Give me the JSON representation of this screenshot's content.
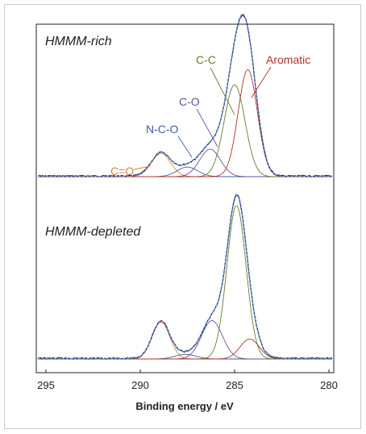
{
  "chart_data": {
    "type": "line",
    "xlabel": "Binding energy / eV",
    "xlim": [
      295,
      280
    ],
    "x_ticks": [
      "295",
      "290",
      "285",
      "280"
    ],
    "x_tick_values": [
      295,
      290,
      285,
      280
    ],
    "reversed_x": true,
    "grid": false,
    "panels": [
      {
        "label": "HMMM-rich",
        "peak_labels": [
          {
            "name": "C=O",
            "color": "#e2803d"
          },
          {
            "name": "N-C-O",
            "color": "#3f5fa0"
          },
          {
            "name": "C-O",
            "color": "#6a4fa0"
          },
          {
            "name": "C-C",
            "color": "#5f7f2f"
          },
          {
            "name": "Aromatic",
            "color": "#b3302b"
          }
        ],
        "components": [
          {
            "name": "C=O",
            "center": 288.9,
            "height": 0.17,
            "fwhm": 1.2,
            "color": "#e2803d"
          },
          {
            "name": "N-C-O",
            "center": 287.5,
            "height": 0.07,
            "fwhm": 1.3,
            "color": "#3f5fa0"
          },
          {
            "name": "C-O",
            "center": 286.3,
            "height": 0.2,
            "fwhm": 1.3,
            "color": "#6a4fa0"
          },
          {
            "name": "C-C",
            "center": 285.0,
            "height": 0.67,
            "fwhm": 1.3,
            "color": "#5f7f2f"
          },
          {
            "name": "Aromatic",
            "center": 284.3,
            "height": 0.78,
            "fwhm": 1.2,
            "color": "#b3302b"
          }
        ]
      },
      {
        "label": "HMMM-depleted",
        "peak_labels": [],
        "components": [
          {
            "name": "C=O",
            "center": 288.9,
            "height": 0.24,
            "fwhm": 1.1,
            "color": "#e2803d"
          },
          {
            "name": "N-C-O",
            "center": 287.6,
            "height": 0.03,
            "fwhm": 1.3,
            "color": "#3f5fa0"
          },
          {
            "name": "C-O",
            "center": 286.2,
            "height": 0.25,
            "fwhm": 1.3,
            "color": "#6a4fa0"
          },
          {
            "name": "C-C",
            "center": 284.9,
            "height": 1.0,
            "fwhm": 1.2,
            "color": "#5f7f2f"
          },
          {
            "name": "Aromatic",
            "center": 284.2,
            "height": 0.13,
            "fwhm": 1.2,
            "color": "#b3302b"
          }
        ]
      }
    ],
    "envelope_color": "#1c2f6b",
    "fit_color": "#6f9bd1",
    "baseline_color": "#c9884f"
  }
}
